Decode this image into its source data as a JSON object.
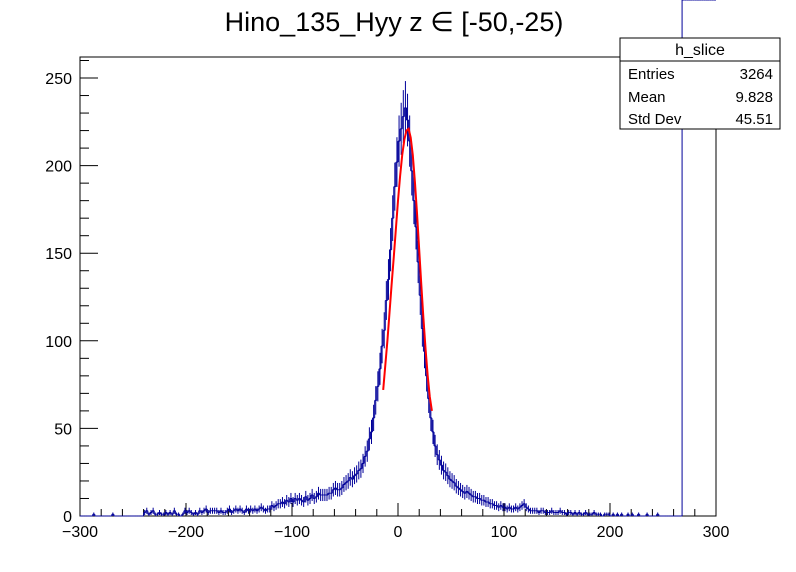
{
  "chart_data": {
    "type": "histogram",
    "title": "Hino_135_Hyy z  ∈ [-50,-25)",
    "xlabel": "",
    "ylabel": "",
    "xlim": [
      -300,
      300
    ],
    "ylim": [
      0,
      262
    ],
    "x_ticks": [
      -300,
      -200,
      -100,
      0,
      100,
      200,
      300
    ],
    "x_tick_labels": [
      "−300",
      "−200",
      "−100",
      "0",
      "100",
      "200",
      "300"
    ],
    "y_ticks": [
      0,
      50,
      100,
      150,
      200,
      250
    ],
    "y_tick_labels": [
      "0",
      "50",
      "100",
      "150",
      "200",
      "250"
    ],
    "histogram": {
      "name": "h_slice",
      "color": "#000099",
      "bin_width": 2,
      "bin_centers": [
        -299,
        -297,
        -295,
        -293,
        -291,
        -289,
        -287,
        -285,
        -283,
        -281,
        -279,
        -277,
        -275,
        -273,
        -271,
        -269,
        -267,
        -265,
        -263,
        -261,
        -259,
        -257,
        -255,
        -253,
        -251,
        -249,
        -247,
        -245,
        -243,
        -241,
        -239,
        -237,
        -235,
        -233,
        -231,
        -229,
        -227,
        -225,
        -223,
        -221,
        -219,
        -217,
        -215,
        -213,
        -211,
        -209,
        -207,
        -205,
        -203,
        -201,
        -199,
        -197,
        -195,
        -193,
        -191,
        -189,
        -187,
        -185,
        -183,
        -181,
        -179,
        -177,
        -175,
        -173,
        -171,
        -169,
        -167,
        -165,
        -163,
        -161,
        -159,
        -157,
        -155,
        -153,
        -151,
        -149,
        -147,
        -145,
        -143,
        -141,
        -139,
        -137,
        -135,
        -133,
        -131,
        -129,
        -127,
        -125,
        -123,
        -121,
        -119,
        -117,
        -115,
        -113,
        -111,
        -109,
        -107,
        -105,
        -103,
        -101,
        -99,
        -97,
        -95,
        -93,
        -91,
        -89,
        -87,
        -85,
        -83,
        -81,
        -79,
        -77,
        -75,
        -73,
        -71,
        -69,
        -67,
        -65,
        -63,
        -61,
        -59,
        -57,
        -55,
        -53,
        -51,
        -49,
        -47,
        -45,
        -43,
        -41,
        -39,
        -37,
        -35,
        -33,
        -31,
        -29,
        -27,
        -25,
        -23,
        -21,
        -19,
        -17,
        -15,
        -13,
        -11,
        -9,
        -7,
        -5,
        -3,
        -1,
        1,
        3,
        5,
        7,
        9,
        11,
        13,
        15,
        17,
        19,
        21,
        23,
        25,
        27,
        29,
        31,
        33,
        35,
        37,
        39,
        41,
        43,
        45,
        47,
        49,
        51,
        53,
        55,
        57,
        59,
        61,
        63,
        65,
        67,
        69,
        71,
        73,
        75,
        77,
        79,
        81,
        83,
        85,
        87,
        89,
        91,
        93,
        95,
        97,
        99,
        101,
        103,
        105,
        107,
        109,
        111,
        113,
        115,
        117,
        119,
        121,
        123,
        125,
        127,
        129,
        131,
        133,
        135,
        137,
        139,
        141,
        143,
        145,
        147,
        149,
        151,
        153,
        155,
        157,
        159,
        161,
        163,
        165,
        167,
        169,
        171,
        173,
        175,
        177,
        179,
        181,
        183,
        185,
        187,
        189,
        191,
        193,
        195,
        197,
        199,
        201,
        203,
        205,
        207,
        209,
        211,
        213,
        215,
        217,
        219,
        221,
        223,
        225,
        227,
        229,
        231,
        233,
        235,
        237,
        239,
        241,
        243,
        245,
        247,
        249,
        251,
        253,
        255,
        257,
        259,
        261,
        263,
        265,
        267,
        269,
        271,
        273,
        275,
        277,
        279,
        281,
        283,
        285,
        287,
        289,
        291,
        293,
        295,
        297,
        299
      ],
      "counts": [
        0,
        0,
        0,
        0,
        0,
        0,
        1,
        0,
        0,
        0,
        0,
        0,
        0,
        0,
        0,
        1,
        0,
        0,
        0,
        0,
        0,
        0,
        0,
        0,
        0,
        0,
        0,
        0,
        0,
        0,
        2,
        3,
        1,
        2,
        3,
        1,
        1,
        2,
        1,
        1,
        2,
        1,
        2,
        1,
        3,
        1,
        1,
        0,
        1,
        3,
        2,
        3,
        2,
        1,
        2,
        1,
        3,
        2,
        3,
        4,
        2,
        3,
        3,
        3,
        3,
        2,
        3,
        2,
        2,
        3,
        4,
        2,
        3,
        4,
        3,
        4,
        3,
        2,
        4,
        3,
        4,
        3,
        4,
        3,
        4,
        5,
        4,
        3,
        4,
        4,
        6,
        5,
        6,
        7,
        7,
        8,
        7,
        9,
        8,
        10,
        8,
        10,
        9,
        10,
        9,
        8,
        11,
        9,
        10,
        12,
        10,
        11,
        13,
        12,
        12,
        12,
        12,
        13,
        13,
        15,
        16,
        15,
        15,
        16,
        18,
        19,
        20,
        22,
        21,
        23,
        24,
        26,
        27,
        30,
        34,
        37,
        44,
        48,
        56,
        66,
        74,
        84,
        97,
        106,
        123,
        135,
        152,
        170,
        188,
        202,
        214,
        221,
        228,
        233,
        226,
        214,
        197,
        180,
        165,
        145,
        126,
        107,
        94,
        80,
        67,
        56,
        48,
        40,
        35,
        32,
        29,
        26,
        25,
        23,
        21,
        20,
        19,
        17,
        16,
        15,
        14,
        13,
        14,
        13,
        12,
        11,
        11,
        10,
        10,
        9,
        9,
        8,
        8,
        7,
        7,
        6,
        6,
        5,
        6,
        5,
        5,
        4,
        5,
        4,
        4,
        5,
        4,
        5,
        6,
        7,
        5,
        4,
        3,
        3,
        3,
        3,
        2,
        3,
        3,
        2,
        2,
        2,
        3,
        2,
        2,
        2,
        3,
        2,
        2,
        1,
        2,
        2,
        1,
        2,
        1,
        2,
        1,
        1,
        2,
        1,
        1,
        1,
        2,
        1,
        1,
        1,
        0,
        1,
        1,
        1,
        0,
        1,
        0,
        1,
        0,
        1,
        0,
        0,
        1,
        0,
        1,
        0,
        0,
        1,
        0,
        0,
        0,
        1,
        0,
        0,
        0,
        0,
        1,
        0,
        0,
        0,
        0,
        0,
        0,
        0,
        0,
        0,
        0,
        0
      ]
    },
    "fit": {
      "color": "#ff0000",
      "x": [
        -14,
        -12,
        -10,
        -8,
        -6,
        -4,
        -2,
        0,
        2,
        4,
        6,
        8,
        10,
        12,
        14,
        16,
        18,
        20,
        22,
        24,
        26,
        28,
        30,
        32
      ],
      "y": [
        72,
        86,
        100,
        116,
        132,
        148,
        164,
        180,
        194,
        206,
        215,
        220,
        221,
        216,
        206,
        190,
        172,
        152,
        132,
        113,
        95,
        80,
        68,
        60
      ]
    },
    "stats_box": {
      "title": "h_slice",
      "rows": [
        {
          "label": "Entries",
          "value": "3264"
        },
        {
          "label": "Mean",
          "value": "9.828"
        },
        {
          "label": "Std Dev",
          "value": "45.51"
        }
      ]
    },
    "grid": false,
    "legend_placement": "top-right"
  }
}
